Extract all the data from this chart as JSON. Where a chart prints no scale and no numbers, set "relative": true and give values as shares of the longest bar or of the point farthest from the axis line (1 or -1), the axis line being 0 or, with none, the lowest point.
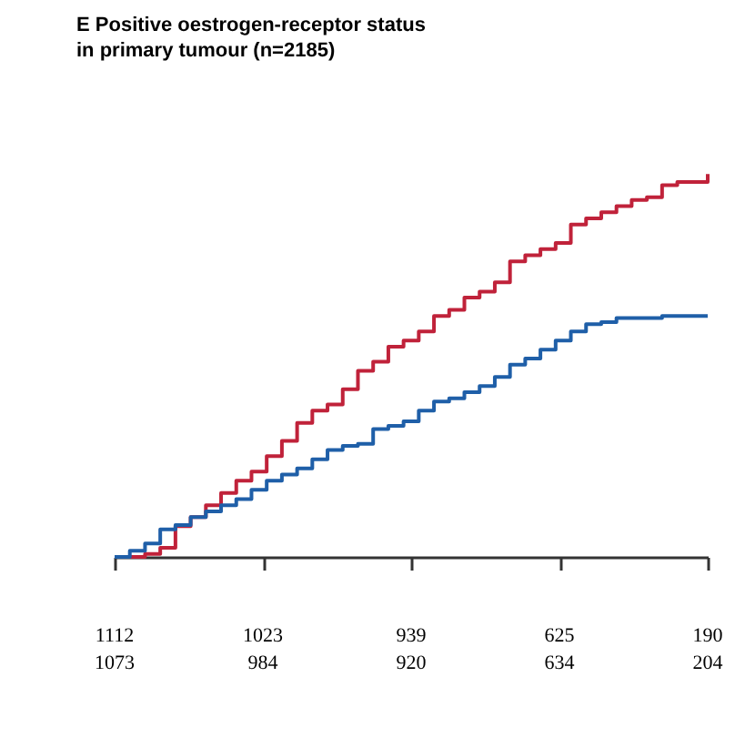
{
  "chart_data": {
    "type": "step",
    "title": "E  Positive oestrogen-receptor status in primary tumour (n=2185)",
    "relative": true,
    "categories": [
      null,
      null,
      null,
      null,
      null,
      null,
      null,
      null,
      null,
      null,
      null,
      null,
      null,
      null,
      null,
      null,
      null,
      null,
      null,
      null,
      null,
      null,
      null,
      null,
      null,
      null,
      null,
      null,
      null,
      null,
      null,
      null,
      null,
      null,
      null,
      null,
      null,
      null,
      null,
      null
    ],
    "series": [
      {
        "color": "#c0223a",
        "values": [
          0,
          0,
          0.008,
          0.024,
          0.08,
          0.104,
          0.135,
          0.167,
          0.199,
          0.223,
          0.263,
          0.303,
          0.35,
          0.382,
          0.398,
          0.438,
          0.486,
          0.51,
          0.549,
          0.565,
          0.589,
          0.629,
          0.645,
          0.677,
          0.693,
          0.717,
          0.772,
          0.788,
          0.804,
          0.82,
          0.868,
          0.884,
          0.9,
          0.916,
          0.932,
          0.939,
          0.971,
          0.979,
          0.979,
          1
        ]
      },
      {
        "color": "#1f5fa8",
        "values": [
          0,
          0.016,
          0.035,
          0.072,
          0.083,
          0.104,
          0.119,
          0.135,
          0.151,
          0.175,
          0.199,
          0.215,
          0.231,
          0.255,
          0.279,
          0.29,
          0.295,
          0.334,
          0.342,
          0.354,
          0.382,
          0.406,
          0.414,
          0.43,
          0.446,
          0.47,
          0.502,
          0.518,
          0.541,
          0.565,
          0.589,
          0.608,
          0.613,
          0.624,
          0.624,
          0.624,
          0.629,
          0.629,
          0.629,
          0.629
        ]
      }
    ],
    "annotations": [
      "1112",
      "1023",
      "939",
      "625",
      "190",
      "1073",
      "984",
      "920",
      "634",
      "204"
    ],
    "grid": false
  }
}
